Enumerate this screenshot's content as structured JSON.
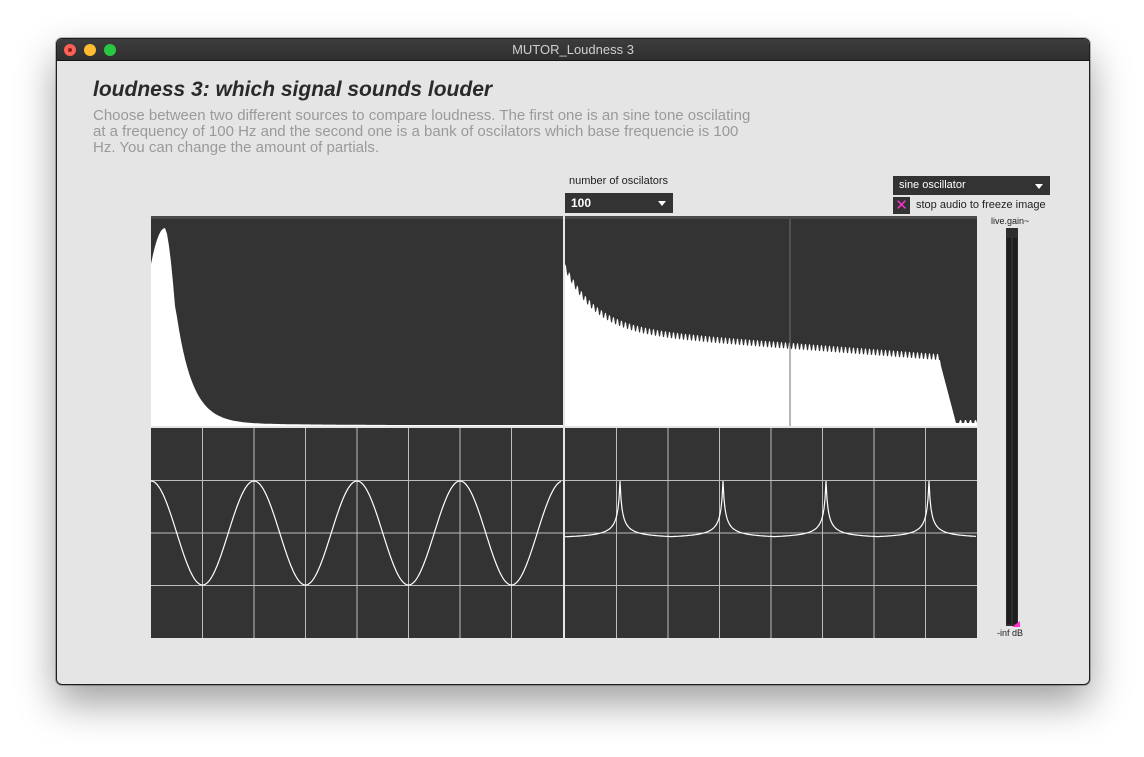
{
  "window": {
    "title": "MUTOR_Loudness 3"
  },
  "heading": "loudness 3: which signal sounds louder",
  "description": "Choose between two different sources to compare loudness. The first one is an sine tone oscilating at a frequency of 100 Hz and the second one is a bank of oscilators which base frequencie is 100 Hz. You can change the amount of partials.",
  "oscillators": {
    "label": "number of oscilators",
    "value": "100"
  },
  "source": {
    "value": "sine oscillator"
  },
  "freeze": {
    "label": "stop audio to freeze image",
    "checked": true,
    "mark": "✕"
  },
  "meter": {
    "label": "live.gain~",
    "value_label": "-inf dB"
  },
  "colors": {
    "panel": "#333333",
    "trace": "#ffffff",
    "accent": "#ff33cc",
    "grid": "#bdbdbd"
  }
}
